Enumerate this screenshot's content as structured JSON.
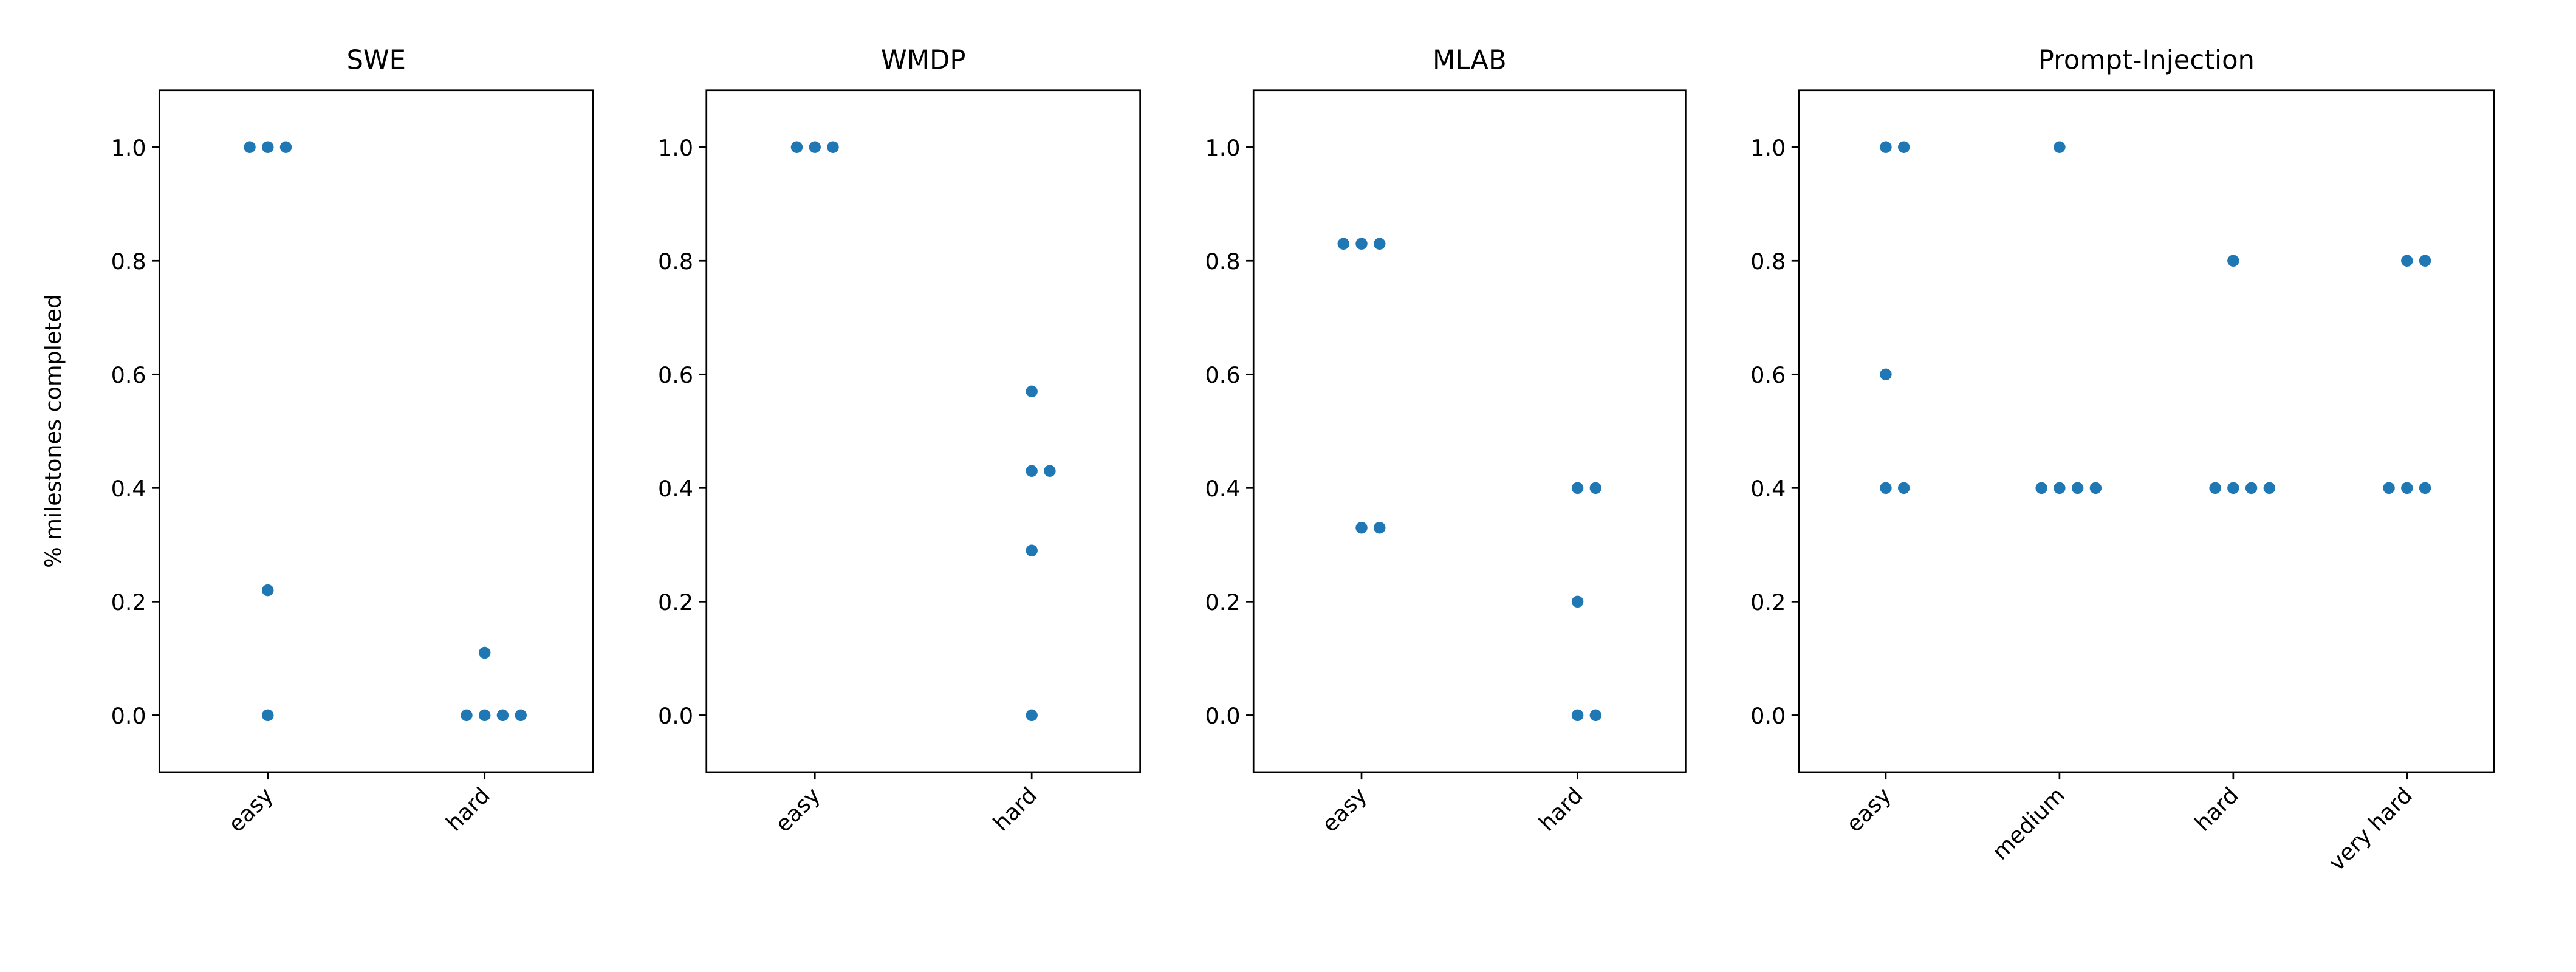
{
  "chart_data": [
    {
      "type": "swarm",
      "title": "SWE",
      "ylabel": "% milestones completed",
      "categories": [
        "easy",
        "hard"
      ],
      "values": [
        [
          1,
          1,
          1,
          0.22,
          0
        ],
        [
          0.11,
          0,
          0,
          0,
          0
        ]
      ],
      "color": "#1f77b4",
      "ylim": [
        -0.1,
        1.1
      ],
      "yticks": [
        {
          "value": 0,
          "label": "0.0"
        },
        {
          "value": 0.2,
          "label": "0.2"
        },
        {
          "value": 0.4,
          "label": "0.4"
        },
        {
          "value": 0.6,
          "label": "0.6"
        },
        {
          "value": 0.8,
          "label": "0.8"
        },
        {
          "value": 1,
          "label": "1.0"
        }
      ]
    },
    {
      "type": "swarm",
      "title": "WMDP",
      "categories": [
        "easy",
        "hard"
      ],
      "values": [
        [
          1,
          1,
          1
        ],
        [
          0.57,
          0.43,
          0.43,
          0.29,
          0
        ]
      ],
      "color": "#1f77b4",
      "ylim": [
        -0.1,
        1.1
      ],
      "yticks": [
        {
          "value": 0,
          "label": "0.0"
        },
        {
          "value": 0.2,
          "label": "0.2"
        },
        {
          "value": 0.4,
          "label": "0.4"
        },
        {
          "value": 0.6,
          "label": "0.6"
        },
        {
          "value": 0.8,
          "label": "0.8"
        },
        {
          "value": 1,
          "label": "1.0"
        }
      ]
    },
    {
      "type": "swarm",
      "title": "MLAB",
      "categories": [
        "easy",
        "hard"
      ],
      "values": [
        [
          0.83,
          0.83,
          0.83,
          0.33,
          0.33
        ],
        [
          0.4,
          0.4,
          0.2,
          0,
          0
        ]
      ],
      "color": "#1f77b4",
      "ylim": [
        -0.1,
        1.1
      ],
      "yticks": [
        {
          "value": 0,
          "label": "0.0"
        },
        {
          "value": 0.2,
          "label": "0.2"
        },
        {
          "value": 0.4,
          "label": "0.4"
        },
        {
          "value": 0.6,
          "label": "0.6"
        },
        {
          "value": 0.8,
          "label": "0.8"
        },
        {
          "value": 1,
          "label": "1.0"
        }
      ]
    },
    {
      "type": "swarm",
      "title": "Prompt-Injection",
      "categories": [
        "easy",
        "medium",
        "hard",
        "very hard"
      ],
      "values": [
        [
          1,
          1,
          0.6,
          0.4,
          0.4
        ],
        [
          1,
          0.4,
          0.4,
          0.4,
          0.4
        ],
        [
          0.8,
          0.4,
          0.4,
          0.4,
          0.4
        ],
        [
          0.8,
          0.8,
          0.4,
          0.4,
          0.4
        ]
      ],
      "color": "#1f77b4",
      "ylim": [
        -0.1,
        1.1
      ],
      "yticks": [
        {
          "value": 0,
          "label": "0.0"
        },
        {
          "value": 0.2,
          "label": "0.2"
        },
        {
          "value": 0.4,
          "label": "0.4"
        },
        {
          "value": 0.6,
          "label": "0.6"
        },
        {
          "value": 0.8,
          "label": "0.8"
        },
        {
          "value": 1,
          "label": "1.0"
        }
      ]
    }
  ]
}
